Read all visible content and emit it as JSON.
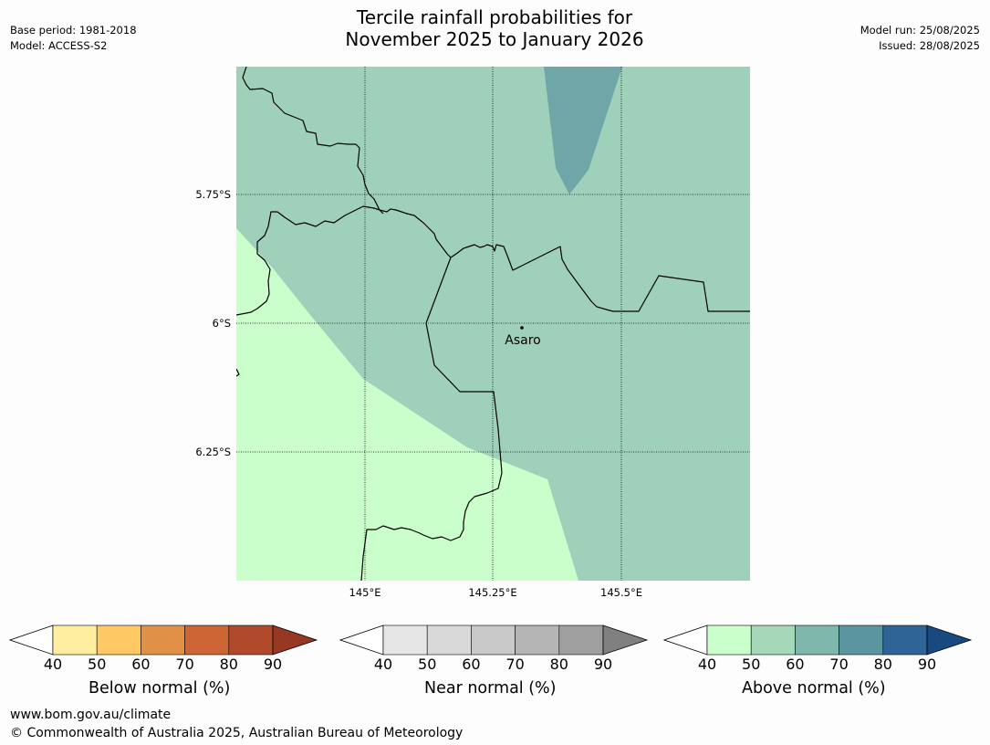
{
  "header": {
    "title_line1": "Tercile rainfall probabilities for",
    "title_line2": "November 2025 to January 2026",
    "base_period": "Base period: 1981-2018",
    "model": "Model: ACCESS-S2",
    "model_run": "Model run: 25/08/2025",
    "issued": "Issued: 28/08/2025"
  },
  "map": {
    "lat_labels": [
      "5.75°S",
      "6°S",
      "6.25°S"
    ],
    "lon_labels": [
      "145°E",
      "145.25°E",
      "145.5°E"
    ],
    "place": {
      "name": "Asaro"
    },
    "colors": {
      "background_category": "#9fd1ba",
      "low_category": "#caffcb",
      "high_category": "#6fa6a8"
    }
  },
  "colorbars": [
    {
      "name": "below",
      "label": "Below normal (%)",
      "ticks": [
        "40",
        "50",
        "60",
        "70",
        "80",
        "90"
      ],
      "colors": [
        "#ffeda0",
        "#fec864",
        "#e09147",
        "#cd6534",
        "#b04a2a",
        "#963823"
      ]
    },
    {
      "name": "near",
      "label": "Near normal (%)",
      "ticks": [
        "40",
        "50",
        "60",
        "70",
        "80",
        "90"
      ],
      "colors": [
        "#e6e6e6",
        "#d9d9d9",
        "#c9c9c9",
        "#b5b5b5",
        "#9f9f9f",
        "#808080"
      ]
    },
    {
      "name": "above",
      "label": "Above normal (%)",
      "ticks": [
        "40",
        "50",
        "60",
        "70",
        "80",
        "90"
      ],
      "colors": [
        "#caffcb",
        "#a4d8b9",
        "#7fb7ad",
        "#5a95a0",
        "#2f6596",
        "#164a80"
      ]
    }
  ],
  "footer": {
    "url": "www.bom.gov.au/climate",
    "copyright": "© Commonwealth of Australia 2025, Australian Bureau of Meteorology"
  }
}
